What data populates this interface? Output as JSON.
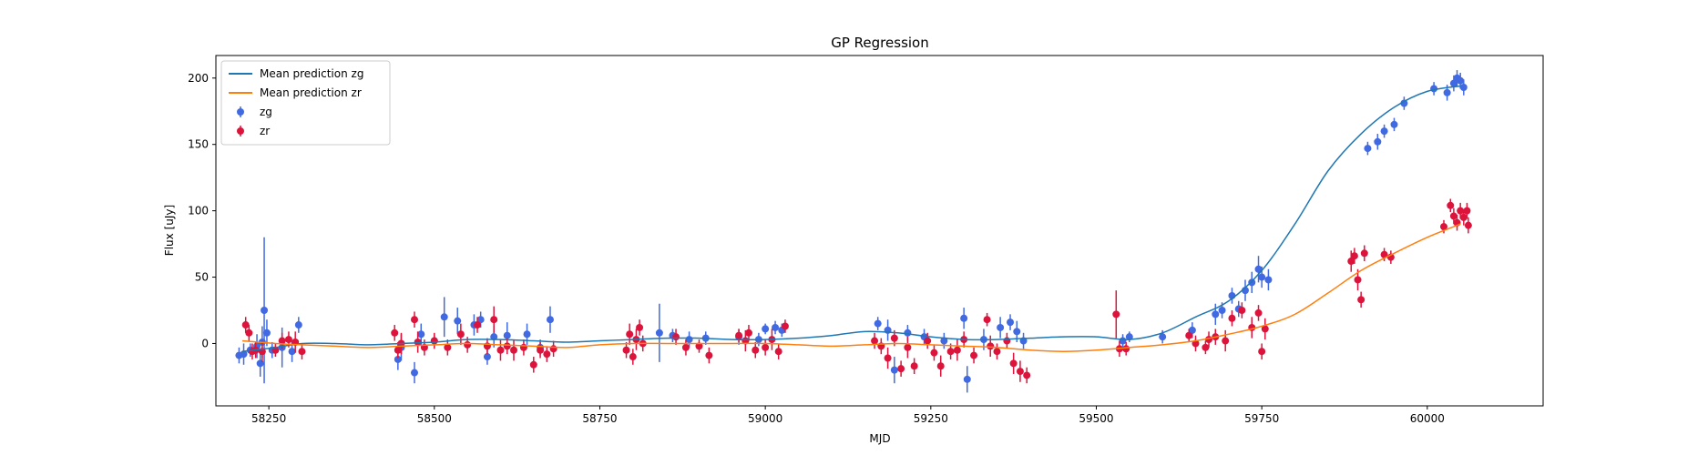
{
  "chart_data": {
    "type": "scatter",
    "title": "GP Regression",
    "xlabel": "MJD",
    "ylabel": "Flux [uJy]",
    "xlim": [
      58170,
      60175
    ],
    "ylim": [
      -47,
      217
    ],
    "xticks": [
      58250,
      58500,
      58750,
      59000,
      59250,
      59500,
      59750,
      60000
    ],
    "yticks": [
      0,
      50,
      100,
      150,
      200
    ],
    "legend_position": "upper left",
    "grid": false,
    "colors": {
      "mean_zg": "#1f77b4",
      "mean_zr": "#ff7f0e",
      "zg": "#4169e1",
      "zr": "#dc143c"
    },
    "legend": [
      {
        "label": "Mean prediction zg",
        "kind": "line",
        "color_key": "mean_zg"
      },
      {
        "label": "Mean prediction zr",
        "kind": "line",
        "color_key": "mean_zr"
      },
      {
        "label": "zg",
        "kind": "errorbar",
        "color_key": "zg"
      },
      {
        "label": "zr",
        "kind": "errorbar",
        "color_key": "zr"
      }
    ],
    "series": [
      {
        "name": "Mean prediction zg",
        "kind": "line",
        "color_key": "mean_zg",
        "x": [
          58210,
          58260,
          58300,
          58350,
          58400,
          58450,
          58500,
          58550,
          58600,
          58650,
          58700,
          58750,
          58800,
          58850,
          58900,
          58950,
          59000,
          59050,
          59100,
          59150,
          59200,
          59250,
          59300,
          59350,
          59400,
          59450,
          59500,
          59550,
          59600,
          59650,
          59700,
          59750,
          59800,
          59850,
          59900,
          59950,
          60000,
          60050
        ],
        "y": [
          -6,
          -3,
          0,
          0,
          -1,
          0,
          1,
          3,
          3,
          2,
          1,
          2,
          3,
          4,
          4,
          3,
          3,
          4,
          6,
          9,
          8,
          5,
          3,
          3,
          4,
          5,
          5,
          3,
          8,
          20,
          32,
          55,
          90,
          130,
          158,
          178,
          190,
          194
        ]
      },
      {
        "name": "Mean prediction zr",
        "kind": "line",
        "color_key": "mean_zr",
        "x": [
          58210,
          58260,
          58300,
          58350,
          58400,
          58450,
          58500,
          58550,
          58600,
          58650,
          58700,
          58750,
          58800,
          58850,
          58900,
          58950,
          59000,
          59050,
          59100,
          59150,
          59200,
          59250,
          59300,
          59350,
          59400,
          59450,
          59500,
          59550,
          59600,
          59650,
          59700,
          59750,
          59800,
          59850,
          59900,
          59950,
          60000,
          60050
        ],
        "y": [
          2,
          0,
          -1,
          -2,
          -3,
          -2,
          -1,
          0,
          -1,
          -2,
          -3,
          -1,
          0,
          0,
          0,
          0,
          0,
          -1,
          -2,
          -1,
          0,
          -1,
          -2,
          -3,
          -5,
          -6,
          -5,
          -3,
          -1,
          2,
          7,
          13,
          22,
          38,
          55,
          68,
          80,
          90
        ]
      },
      {
        "name": "zg",
        "kind": "errorbar",
        "color_key": "zg",
        "points": [
          [
            58205,
            -9,
            6
          ],
          [
            58212,
            -8,
            8
          ],
          [
            58222,
            -5,
            5
          ],
          [
            58232,
            -2,
            9
          ],
          [
            58237,
            -15,
            10
          ],
          [
            58240,
            1,
            12
          ],
          [
            58243,
            25,
            55
          ],
          [
            58247,
            8,
            10
          ],
          [
            58255,
            -5,
            6
          ],
          [
            58270,
            -3,
            15
          ],
          [
            58285,
            -6,
            8
          ],
          [
            58295,
            14,
            6
          ],
          [
            58445,
            -12,
            8
          ],
          [
            58450,
            -3,
            10
          ],
          [
            58470,
            -22,
            8
          ],
          [
            58480,
            7,
            8
          ],
          [
            58500,
            2,
            5
          ],
          [
            58515,
            20,
            15
          ],
          [
            58535,
            17,
            10
          ],
          [
            58560,
            14,
            8
          ],
          [
            58570,
            18,
            6
          ],
          [
            58580,
            -10,
            6
          ],
          [
            58590,
            5,
            8
          ],
          [
            58610,
            6,
            10
          ],
          [
            58640,
            7,
            8
          ],
          [
            58660,
            -3,
            6
          ],
          [
            58675,
            18,
            10
          ],
          [
            58840,
            8,
            22
          ],
          [
            58860,
            6,
            5
          ],
          [
            58885,
            3,
            6
          ],
          [
            58910,
            4,
            5
          ],
          [
            58960,
            5,
            6
          ],
          [
            58990,
            3,
            5
          ],
          [
            59000,
            11,
            4
          ],
          [
            59015,
            12,
            5
          ],
          [
            59025,
            10,
            5
          ],
          [
            59170,
            15,
            5
          ],
          [
            59185,
            10,
            8
          ],
          [
            59195,
            -20,
            10
          ],
          [
            59215,
            8,
            6
          ],
          [
            59240,
            5,
            6
          ],
          [
            59270,
            2,
            6
          ],
          [
            59300,
            19,
            8
          ],
          [
            59305,
            -27,
            10
          ],
          [
            59330,
            3,
            8
          ],
          [
            59355,
            12,
            8
          ],
          [
            59370,
            16,
            6
          ],
          [
            59380,
            9,
            8
          ],
          [
            59390,
            2,
            6
          ],
          [
            59540,
            2,
            5
          ],
          [
            59550,
            5,
            4
          ],
          [
            59600,
            5,
            5
          ],
          [
            59645,
            10,
            6
          ],
          [
            59680,
            22,
            8
          ],
          [
            59690,
            25,
            6
          ],
          [
            59705,
            36,
            6
          ],
          [
            59715,
            26,
            6
          ],
          [
            59725,
            40,
            8
          ],
          [
            59735,
            46,
            8
          ],
          [
            59745,
            56,
            10
          ],
          [
            59750,
            50,
            8
          ],
          [
            59760,
            48,
            8
          ],
          [
            59910,
            147,
            5
          ],
          [
            59925,
            152,
            6
          ],
          [
            59935,
            160,
            5
          ],
          [
            59950,
            165,
            5
          ],
          [
            59965,
            181,
            5
          ],
          [
            60010,
            192,
            5
          ],
          [
            60030,
            189,
            6
          ],
          [
            60040,
            196,
            6
          ],
          [
            60045,
            200,
            6
          ],
          [
            60050,
            198,
            6
          ],
          [
            60055,
            193,
            6
          ]
        ]
      },
      {
        "name": "zr",
        "kind": "errorbar",
        "color_key": "zr",
        "points": [
          [
            58215,
            14,
            6
          ],
          [
            58220,
            8,
            6
          ],
          [
            58225,
            -6,
            6
          ],
          [
            58230,
            -5,
            6
          ],
          [
            58240,
            -6,
            8
          ],
          [
            58260,
            -5,
            5
          ],
          [
            58270,
            2,
            6
          ],
          [
            58280,
            3,
            6
          ],
          [
            58290,
            1,
            8
          ],
          [
            58300,
            -6,
            6
          ],
          [
            58440,
            8,
            6
          ],
          [
            58445,
            -5,
            6
          ],
          [
            58450,
            0,
            8
          ],
          [
            58470,
            18,
            6
          ],
          [
            58475,
            1,
            8
          ],
          [
            58485,
            -3,
            6
          ],
          [
            58500,
            2,
            6
          ],
          [
            58520,
            -3,
            6
          ],
          [
            58540,
            7,
            8
          ],
          [
            58550,
            -1,
            6
          ],
          [
            58565,
            14,
            6
          ],
          [
            58580,
            -2,
            6
          ],
          [
            58590,
            18,
            10
          ],
          [
            58600,
            -5,
            8
          ],
          [
            58610,
            -2,
            6
          ],
          [
            58620,
            -5,
            8
          ],
          [
            58635,
            -3,
            6
          ],
          [
            58650,
            -16,
            6
          ],
          [
            58660,
            -5,
            6
          ],
          [
            58670,
            -8,
            6
          ],
          [
            58680,
            -4,
            6
          ],
          [
            58790,
            -5,
            6
          ],
          [
            58795,
            7,
            8
          ],
          [
            58800,
            -10,
            6
          ],
          [
            58805,
            3,
            8
          ],
          [
            58810,
            12,
            6
          ],
          [
            58815,
            0,
            6
          ],
          [
            58865,
            5,
            6
          ],
          [
            58880,
            -3,
            6
          ],
          [
            58900,
            -2,
            5
          ],
          [
            58915,
            -9,
            6
          ],
          [
            58960,
            6,
            5
          ],
          [
            58970,
            2,
            8
          ],
          [
            58975,
            8,
            6
          ],
          [
            58985,
            -5,
            6
          ],
          [
            59000,
            -3,
            6
          ],
          [
            59010,
            3,
            8
          ],
          [
            59020,
            -6,
            6
          ],
          [
            59030,
            13,
            5
          ],
          [
            59165,
            2,
            6
          ],
          [
            59175,
            -2,
            6
          ],
          [
            59185,
            -11,
            8
          ],
          [
            59195,
            4,
            6
          ],
          [
            59205,
            -19,
            6
          ],
          [
            59215,
            -3,
            8
          ],
          [
            59225,
            -17,
            6
          ],
          [
            59245,
            2,
            6
          ],
          [
            59255,
            -7,
            6
          ],
          [
            59265,
            -17,
            8
          ],
          [
            59280,
            -6,
            6
          ],
          [
            59290,
            -5,
            8
          ],
          [
            59300,
            3,
            6
          ],
          [
            59315,
            -9,
            6
          ],
          [
            59335,
            18,
            5
          ],
          [
            59340,
            -2,
            8
          ],
          [
            59350,
            -6,
            6
          ],
          [
            59365,
            2,
            6
          ],
          [
            59375,
            -15,
            8
          ],
          [
            59385,
            -21,
            8
          ],
          [
            59395,
            -24,
            6
          ],
          [
            59530,
            22,
            18
          ],
          [
            59535,
            -4,
            6
          ],
          [
            59545,
            -4,
            5
          ],
          [
            59640,
            6,
            5
          ],
          [
            59650,
            0,
            6
          ],
          [
            59665,
            -3,
            5
          ],
          [
            59670,
            3,
            6
          ],
          [
            59680,
            5,
            6
          ],
          [
            59695,
            2,
            8
          ],
          [
            59705,
            19,
            6
          ],
          [
            59720,
            25,
            6
          ],
          [
            59735,
            12,
            8
          ],
          [
            59745,
            23,
            6
          ],
          [
            59750,
            -6,
            6
          ],
          [
            59755,
            11,
            8
          ],
          [
            59885,
            62,
            8
          ],
          [
            59890,
            66,
            6
          ],
          [
            59895,
            48,
            8
          ],
          [
            59900,
            33,
            6
          ],
          [
            59905,
            68,
            6
          ],
          [
            59935,
            67,
            5
          ],
          [
            59945,
            65,
            5
          ],
          [
            60025,
            88,
            5
          ],
          [
            60035,
            104,
            5
          ],
          [
            60040,
            96,
            6
          ],
          [
            60045,
            91,
            6
          ],
          [
            60050,
            100,
            6
          ],
          [
            60055,
            95,
            6
          ],
          [
            60060,
            100,
            6
          ],
          [
            60062,
            89,
            6
          ]
        ]
      }
    ]
  }
}
